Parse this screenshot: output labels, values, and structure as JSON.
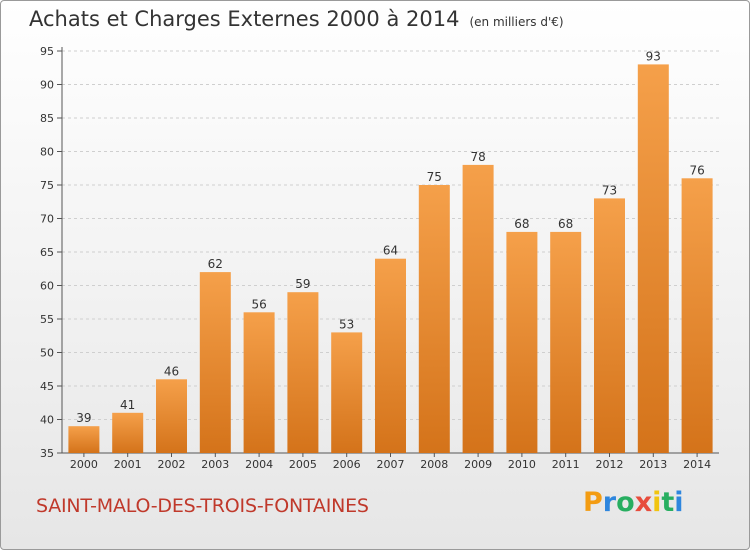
{
  "chart_data": {
    "type": "bar",
    "title": "Achats et Charges Externes 2000 à 2014",
    "subtitle": "(en milliers d'€)",
    "categories": [
      "2000",
      "2001",
      "2002",
      "2003",
      "2004",
      "2005",
      "2006",
      "2007",
      "2008",
      "2009",
      "2010",
      "2011",
      "2012",
      "2013",
      "2014"
    ],
    "values": [
      39,
      41,
      46,
      62,
      56,
      59,
      53,
      64,
      75,
      78,
      68,
      68,
      73,
      93,
      76
    ],
    "ylim": [
      35,
      95
    ],
    "yticks": [
      35,
      40,
      45,
      50,
      55,
      60,
      65,
      70,
      75,
      80,
      85,
      90,
      95
    ],
    "grid": true,
    "bar_color": "#f5a04a",
    "bar_color_dark": "#d4731a"
  },
  "footer": {
    "commune": "SAINT-MALO-DES-TROIS-FONTAINES",
    "commune_color": "#c0392b"
  },
  "logo": {
    "letters": [
      "P",
      "r",
      "o",
      "x",
      "i",
      "t",
      "i"
    ],
    "colors": [
      "#f39c12",
      "#2e86de",
      "#27ae60",
      "#e74c3c",
      "#f1c40f",
      "#27ae60",
      "#2e86de"
    ]
  }
}
